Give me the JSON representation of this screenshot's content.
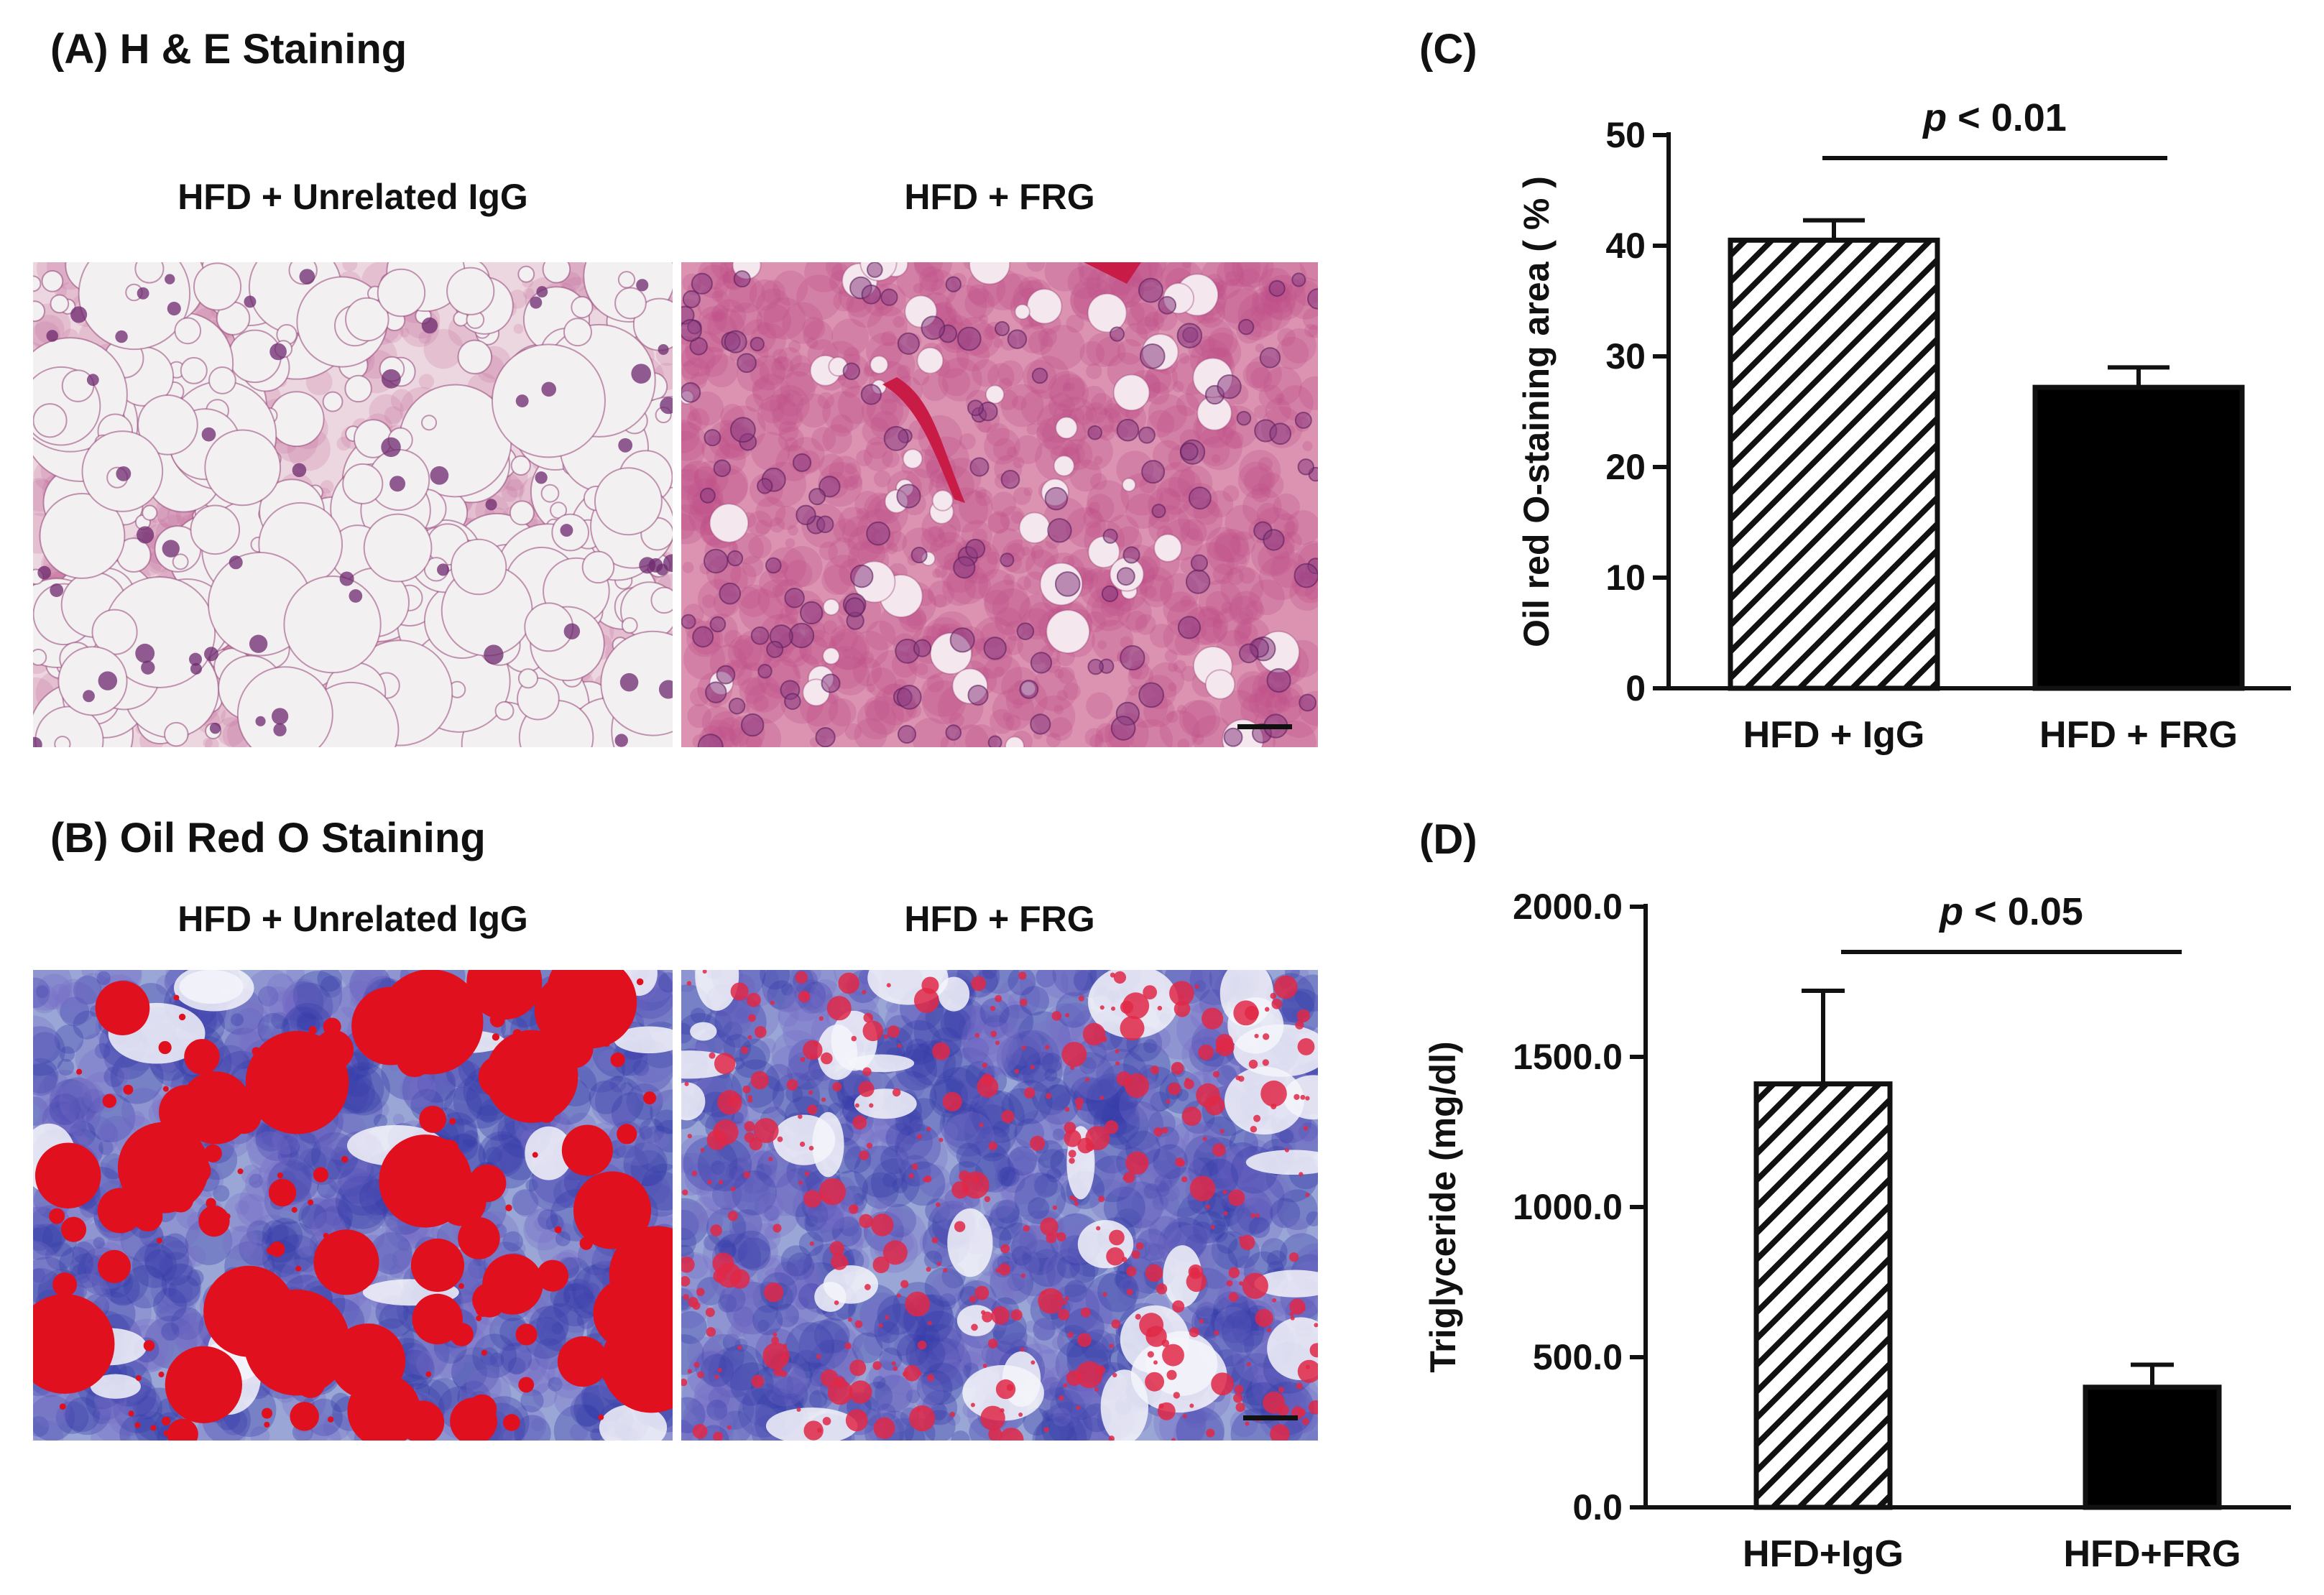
{
  "panel_a": {
    "title": "(A) H & E Staining",
    "image_labels": [
      "HFD + Unrelated IgG",
      "HFD + FRG"
    ]
  },
  "panel_b": {
    "title": "(B) Oil Red O Staining",
    "image_labels": [
      "HFD + Unrelated IgG",
      "HFD + FRG"
    ]
  },
  "chart_data": [
    {
      "panel": "(C)",
      "type": "bar",
      "categories": [
        "HFD + IgG",
        "HFD + FRG"
      ],
      "values": [
        40.5,
        27.2
      ],
      "errors": [
        1.8,
        1.8
      ],
      "ylabel": "Oil red O-staining area ( % )",
      "ylim": [
        0,
        50
      ],
      "yticks": [
        0,
        10,
        20,
        30,
        40,
        50
      ],
      "ytick_labels": [
        "0",
        "10",
        "20",
        "30",
        "40",
        "50"
      ],
      "bar_patterns": [
        "hatched",
        "solid-black"
      ],
      "significance": {
        "p_prefix": "p",
        "p_suffix": " < 0.01"
      },
      "grid": false
    },
    {
      "panel": "(D)",
      "type": "bar",
      "categories": [
        "HFD+IgG",
        "HFD+FRG"
      ],
      "values": [
        1410,
        400
      ],
      "errors": [
        310,
        75
      ],
      "ylabel": "Triglyceride (mg/dl)",
      "ylim": [
        0,
        2000
      ],
      "yticks": [
        0,
        500,
        1000,
        1500,
        2000
      ],
      "ytick_labels": [
        "0.0",
        "500.0",
        "1000.0",
        "1500.0",
        "2000.0"
      ],
      "bar_patterns": [
        "hatched",
        "solid-black"
      ],
      "significance": {
        "p_prefix": "p",
        "p_suffix": " < 0.05"
      },
      "grid": false
    }
  ]
}
